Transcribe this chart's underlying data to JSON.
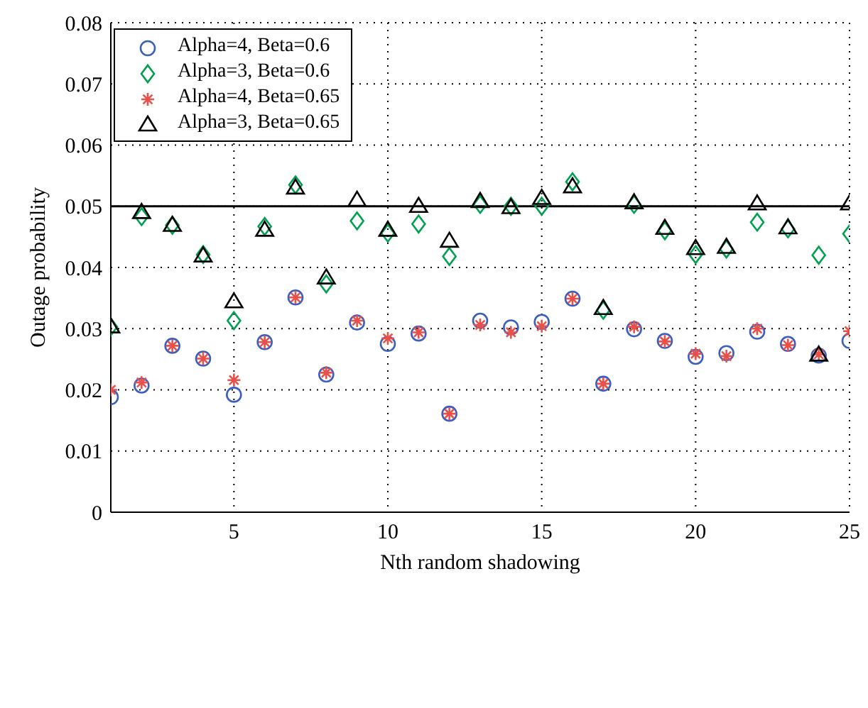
{
  "chart_data": {
    "type": "scatter",
    "xlabel": "Nth random shadowing",
    "ylabel": "Outage probability",
    "x": [
      1,
      2,
      3,
      4,
      5,
      6,
      7,
      8,
      9,
      10,
      11,
      12,
      13,
      14,
      15,
      16,
      17,
      18,
      19,
      20,
      21,
      22,
      23,
      24,
      25
    ],
    "xlim": [
      1,
      25
    ],
    "xticks": [
      5,
      10,
      15,
      20,
      25
    ],
    "ylim": [
      0,
      0.08
    ],
    "yticks": [
      0,
      0.01,
      0.02,
      0.03,
      0.04,
      0.05,
      0.06,
      0.07,
      0.08
    ],
    "grid": true,
    "legend": "top left",
    "ref_lines": [
      {
        "axis": "y",
        "value": 0.05,
        "color": "#000000",
        "line_style": "solid"
      }
    ],
    "series": [
      {
        "name": "Alpha=4, Beta=0.6",
        "color": "#3a5fc0",
        "marker": "circle",
        "values": [
          0.0188,
          0.0207,
          0.0272,
          0.0251,
          0.0192,
          0.0278,
          0.0351,
          0.0225,
          0.031,
          0.0275,
          0.0292,
          0.0161,
          0.0313,
          0.0302,
          0.0311,
          0.0349,
          0.021,
          0.0299,
          0.028,
          0.0254,
          0.026,
          0.0295,
          0.0275,
          0.0256,
          0.028
        ]
      },
      {
        "name": "Alpha=3, Beta=0.6",
        "color": "#00a050",
        "marker": "diamond",
        "values": [
          0.0303,
          0.0483,
          0.0469,
          0.0421,
          0.0313,
          0.0467,
          0.0535,
          0.0373,
          0.0476,
          0.0456,
          0.0471,
          0.0418,
          0.0503,
          0.05,
          0.05,
          0.054,
          0.033,
          0.0503,
          0.046,
          0.0421,
          0.043,
          0.0474,
          0.0463,
          0.042,
          0.0455
        ]
      },
      {
        "name": "Alpha=4, Beta=0.65",
        "color": "#e8514a",
        "marker": "cross",
        "values": [
          0.02,
          0.0212,
          0.0272,
          0.0251,
          0.0216,
          0.0278,
          0.0351,
          0.0228,
          0.0313,
          0.0284,
          0.0294,
          0.0161,
          0.0306,
          0.0294,
          0.0304,
          0.0349,
          0.021,
          0.0303,
          0.0279,
          0.0259,
          0.0255,
          0.03,
          0.0273,
          0.0258,
          0.0296
        ]
      },
      {
        "name": "Alpha=3, Beta=0.65",
        "color": "#000000",
        "marker": "triangle",
        "values": [
          0.0303,
          0.049,
          0.0469,
          0.0419,
          0.0344,
          0.0461,
          0.053,
          0.0383,
          0.051,
          0.0461,
          0.05,
          0.0443,
          0.0508,
          0.0498,
          0.0513,
          0.0532,
          0.0333,
          0.0506,
          0.0464,
          0.0431,
          0.0433,
          0.0504,
          0.0465,
          0.0257,
          0.0504
        ]
      }
    ]
  }
}
